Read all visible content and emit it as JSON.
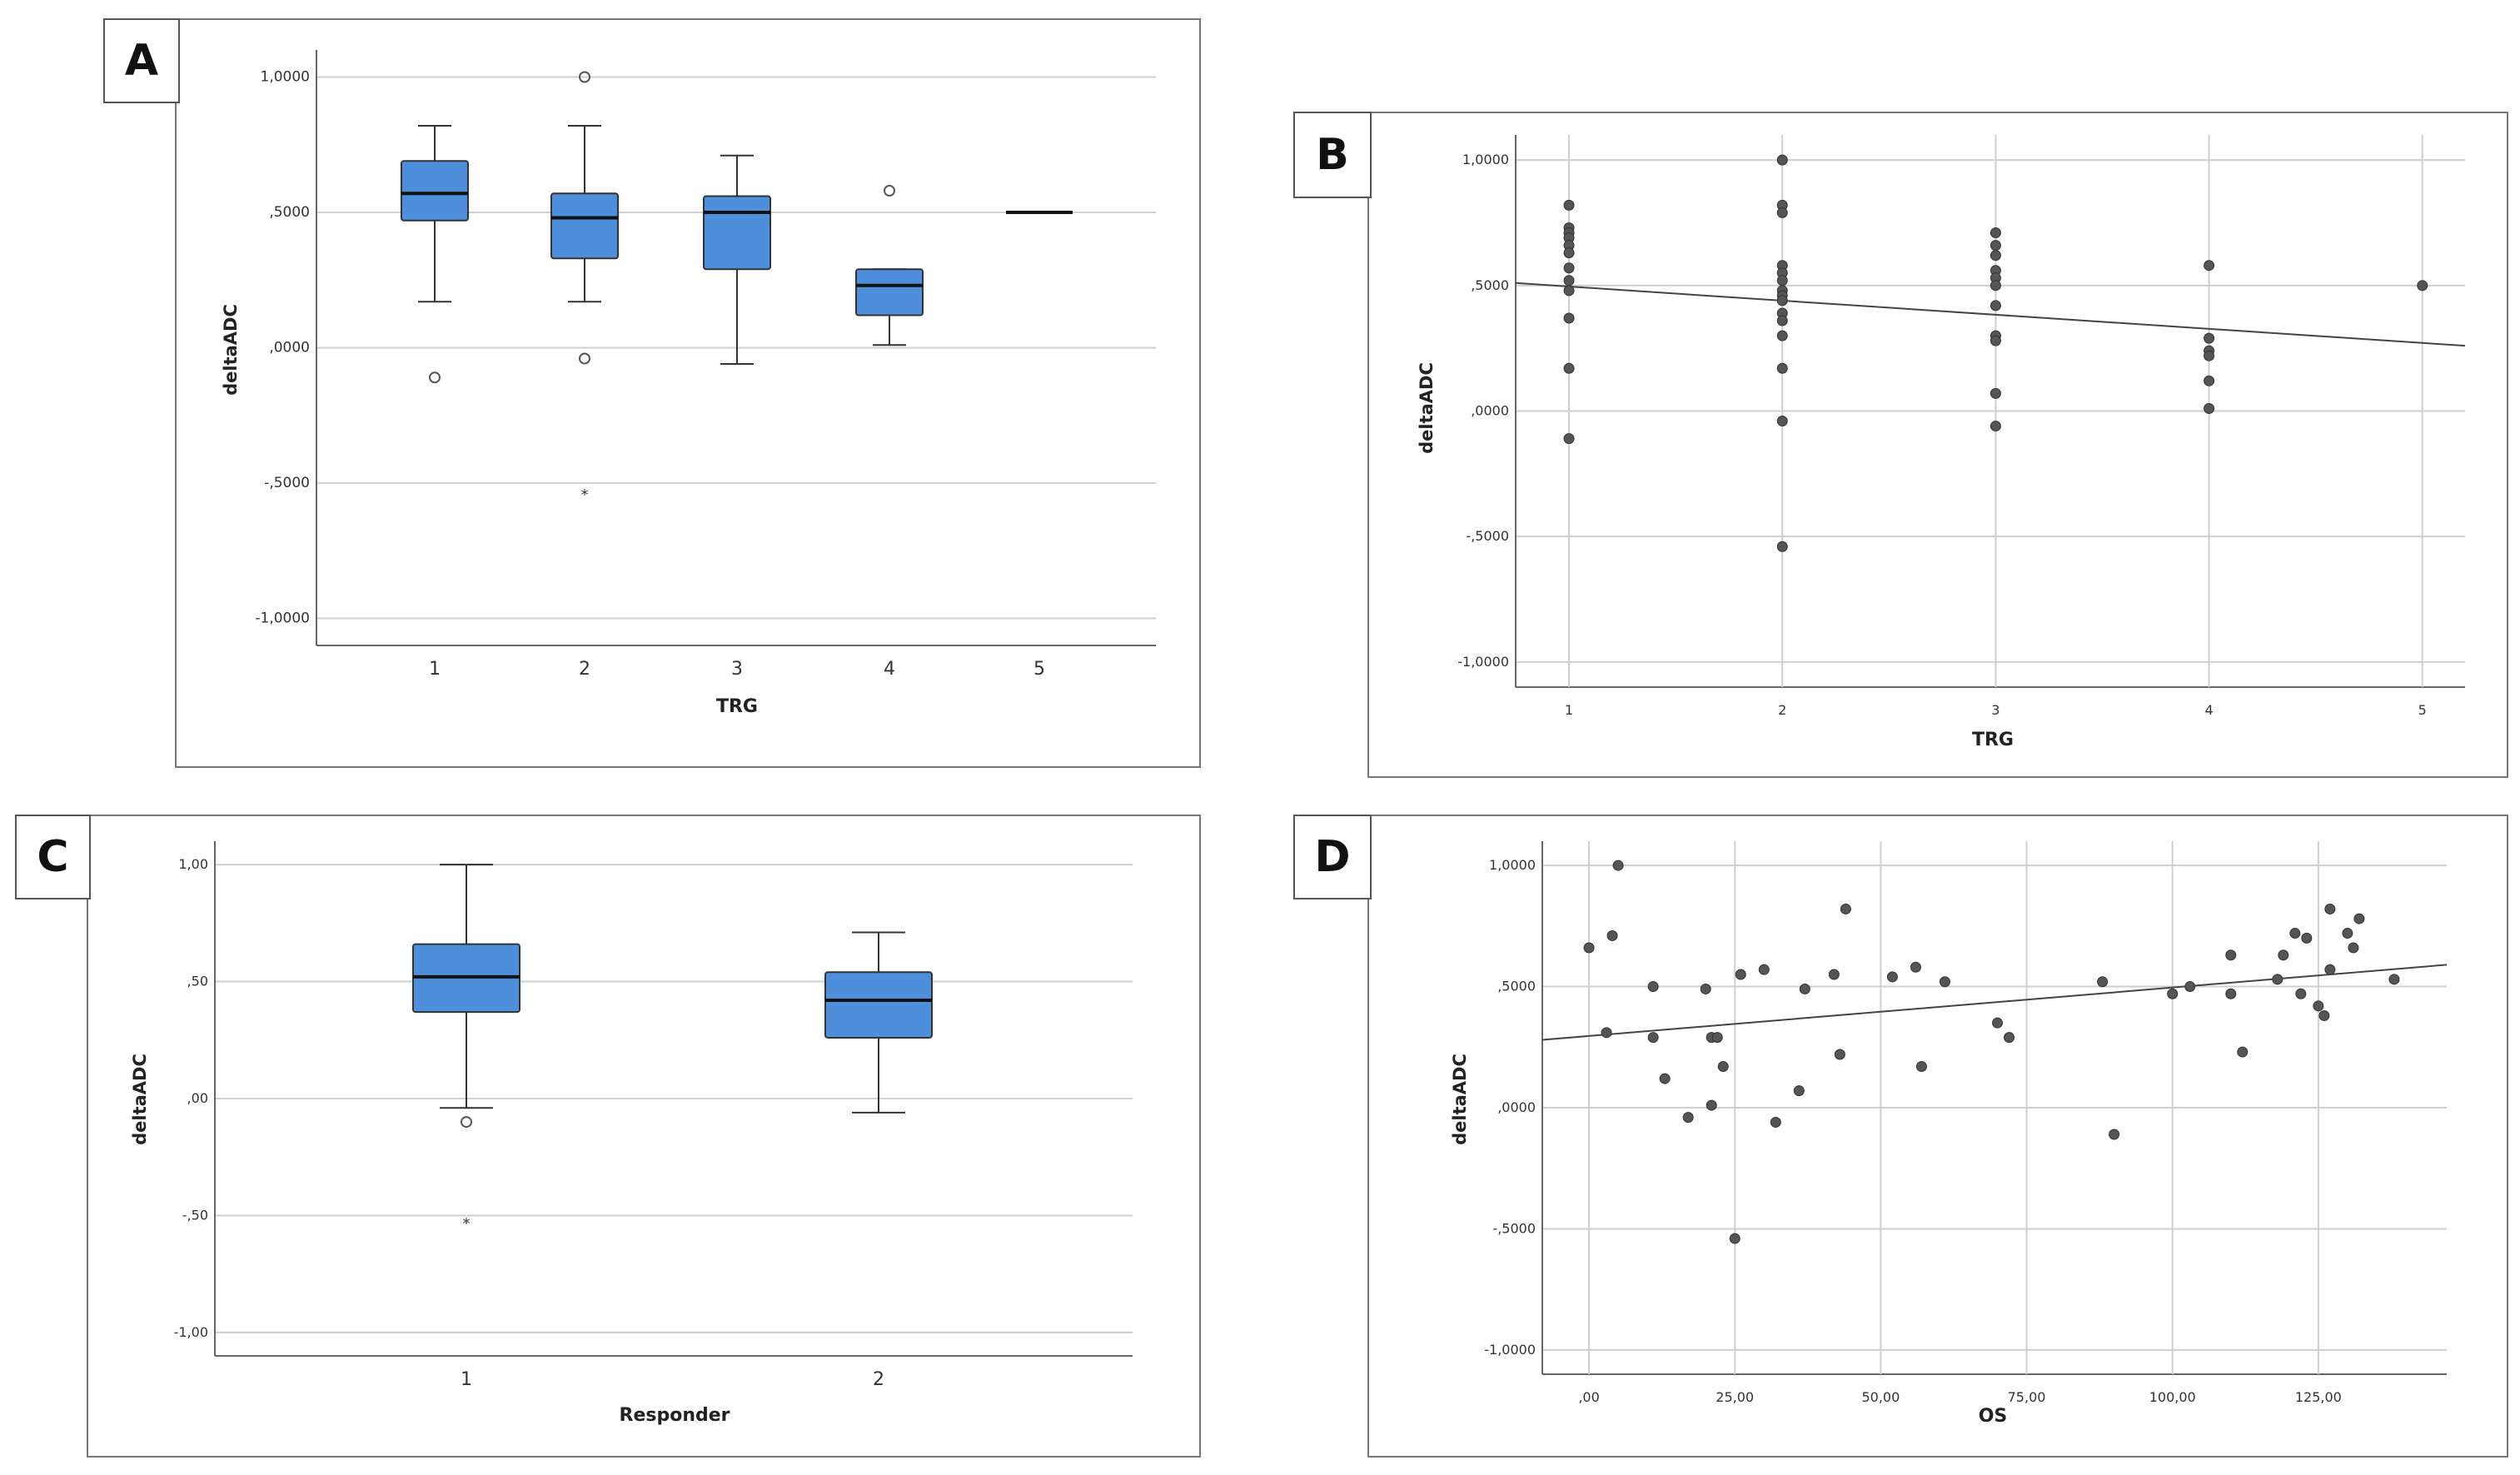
{
  "chart_data": [
    {
      "panel": "A",
      "type": "box",
      "xlabel": "TRG",
      "ylabel": "deltaADC",
      "ylim": [
        -1.1,
        1.1
      ],
      "yticks": [
        1.0,
        0.5,
        0.0,
        -0.5,
        -1.0
      ],
      "ytick_labels": [
        "1,0000",
        ",5000",
        ",0000",
        "-,5000",
        "-1,0000"
      ],
      "categories": [
        "1",
        "2",
        "3",
        "4",
        "5"
      ],
      "boxes": [
        {
          "category": "1",
          "min": 0.17,
          "q1": 0.47,
          "median": 0.57,
          "q3": 0.69,
          "max": 0.82,
          "outliers": [
            {
              "v": -0.11,
              "m": "o"
            }
          ]
        },
        {
          "category": "2",
          "min": 0.17,
          "q1": 0.33,
          "median": 0.48,
          "q3": 0.57,
          "max": 0.82,
          "outliers": [
            {
              "v": 1.0,
              "m": "o"
            },
            {
              "v": -0.04,
              "m": "o"
            },
            {
              "v": -0.54,
              "m": "*"
            }
          ]
        },
        {
          "category": "3",
          "min": -0.06,
          "q1": 0.29,
          "median": 0.5,
          "q3": 0.56,
          "max": 0.71,
          "outliers": []
        },
        {
          "category": "4",
          "min": 0.01,
          "q1": 0.12,
          "median": 0.23,
          "q3": 0.29,
          "max": 0.29,
          "outliers": [
            {
              "v": 0.58,
              "m": "o"
            }
          ]
        },
        {
          "category": "5",
          "min": 0.5,
          "q1": 0.5,
          "median": 0.5,
          "q3": 0.5,
          "max": 0.5,
          "outliers": []
        }
      ],
      "box_color": "#4d8fdb"
    },
    {
      "panel": "B",
      "type": "scatter",
      "xlabel": "TRG",
      "ylabel": "deltaADC",
      "ylim": [
        -1.1,
        1.1
      ],
      "xlim": [
        0.75,
        5.2
      ],
      "xticks": [
        1,
        2,
        3,
        4,
        5
      ],
      "xtick_labels": [
        "1",
        "2",
        "3",
        "4",
        "5"
      ],
      "yticks": [
        1.0,
        0.5,
        0.0,
        -0.5,
        -1.0
      ],
      "ytick_labels": [
        "1,0000",
        ",5000",
        ",0000",
        "-,5000",
        "-1,0000"
      ],
      "points": [
        [
          1,
          0.82
        ],
        [
          1,
          0.73
        ],
        [
          1,
          0.71
        ],
        [
          1,
          0.69
        ],
        [
          1,
          0.66
        ],
        [
          1,
          0.63
        ],
        [
          1,
          0.57
        ],
        [
          1,
          0.52
        ],
        [
          1,
          0.48
        ],
        [
          1,
          0.37
        ],
        [
          1,
          0.17
        ],
        [
          1,
          -0.11
        ],
        [
          2,
          1.0
        ],
        [
          2,
          0.82
        ],
        [
          2,
          0.79
        ],
        [
          2,
          0.58
        ],
        [
          2,
          0.55
        ],
        [
          2,
          0.52
        ],
        [
          2,
          0.48
        ],
        [
          2,
          0.46
        ],
        [
          2,
          0.44
        ],
        [
          2,
          0.39
        ],
        [
          2,
          0.36
        ],
        [
          2,
          0.3
        ],
        [
          2,
          0.17
        ],
        [
          2,
          -0.04
        ],
        [
          2,
          -0.54
        ],
        [
          3,
          0.71
        ],
        [
          3,
          0.66
        ],
        [
          3,
          0.62
        ],
        [
          3,
          0.56
        ],
        [
          3,
          0.53
        ],
        [
          3,
          0.5
        ],
        [
          3,
          0.42
        ],
        [
          3,
          0.3
        ],
        [
          3,
          0.28
        ],
        [
          3,
          0.07
        ],
        [
          3,
          -0.06
        ],
        [
          4,
          0.58
        ],
        [
          4,
          0.29
        ],
        [
          4,
          0.24
        ],
        [
          4,
          0.22
        ],
        [
          4,
          0.12
        ],
        [
          4,
          0.01
        ],
        [
          5,
          0.5
        ]
      ],
      "fit_line": {
        "x": [
          0.75,
          5.2
        ],
        "y": [
          0.51,
          0.26
        ]
      }
    },
    {
      "panel": "C",
      "type": "box",
      "xlabel": "Responder",
      "ylabel": "deltaADC",
      "ylim": [
        -1.1,
        1.1
      ],
      "yticks": [
        1.0,
        0.5,
        0.0,
        -0.5,
        -1.0
      ],
      "ytick_labels": [
        "1,00",
        ",50",
        ",00",
        "-,50",
        "-1,00"
      ],
      "categories": [
        "1",
        "2"
      ],
      "boxes": [
        {
          "category": "1",
          "min": -0.04,
          "q1": 0.37,
          "median": 0.52,
          "q3": 0.66,
          "max": 1.0,
          "outliers": [
            {
              "v": -0.1,
              "m": "o"
            },
            {
              "v": -0.53,
              "m": "*"
            }
          ]
        },
        {
          "category": "2",
          "min": -0.06,
          "q1": 0.26,
          "median": 0.42,
          "q3": 0.54,
          "max": 0.71,
          "outliers": []
        }
      ],
      "box_color": "#4d8fdb"
    },
    {
      "panel": "D",
      "type": "scatter",
      "xlabel": "OS",
      "ylabel": "deltaADC",
      "ylim": [
        -1.1,
        1.1
      ],
      "xlim": [
        -8,
        147
      ],
      "xticks": [
        0,
        25,
        50,
        75,
        100,
        125
      ],
      "xtick_labels": [
        ",00",
        "25,00",
        "50,00",
        "75,00",
        "100,00",
        "125,00"
      ],
      "yticks": [
        1.0,
        0.5,
        0.0,
        -0.5,
        -1.0
      ],
      "ytick_labels": [
        "1,0000",
        ",5000",
        ",0000",
        "-,5000",
        "-1,0000"
      ],
      "points": [
        [
          0,
          0.66
        ],
        [
          3,
          0.31
        ],
        [
          4,
          0.71
        ],
        [
          5,
          1.0
        ],
        [
          11,
          0.5
        ],
        [
          11,
          0.29
        ],
        [
          13,
          0.12
        ],
        [
          17,
          -0.04
        ],
        [
          20,
          0.49
        ],
        [
          21,
          0.29
        ],
        [
          21,
          0.01
        ],
        [
          22,
          0.29
        ],
        [
          23,
          0.17
        ],
        [
          25,
          -0.54
        ],
        [
          26,
          0.55
        ],
        [
          30,
          0.57
        ],
        [
          32,
          -0.06
        ],
        [
          36,
          0.07
        ],
        [
          37,
          0.49
        ],
        [
          42,
          0.55
        ],
        [
          43,
          0.22
        ],
        [
          44,
          0.82
        ],
        [
          52,
          0.54
        ],
        [
          56,
          0.58
        ],
        [
          57,
          0.17
        ],
        [
          61,
          0.52
        ],
        [
          70,
          0.35
        ],
        [
          72,
          0.29
        ],
        [
          88,
          0.52
        ],
        [
          90,
          -0.11
        ],
        [
          100,
          0.47
        ],
        [
          103,
          0.5
        ],
        [
          110,
          0.47
        ],
        [
          110,
          0.63
        ],
        [
          112,
          0.23
        ],
        [
          118,
          0.53
        ],
        [
          119,
          0.63
        ],
        [
          121,
          0.72
        ],
        [
          122,
          0.47
        ],
        [
          123,
          0.7
        ],
        [
          125,
          0.42
        ],
        [
          126,
          0.38
        ],
        [
          127,
          0.57
        ],
        [
          127,
          0.82
        ],
        [
          130,
          0.72
        ],
        [
          131,
          0.66
        ],
        [
          132,
          0.78
        ],
        [
          138,
          0.53
        ]
      ],
      "fit_line": {
        "x": [
          -8,
          147
        ],
        "y": [
          0.28,
          0.59
        ]
      }
    }
  ],
  "panel_labels": [
    "A",
    "B",
    "C",
    "D"
  ],
  "colors": {
    "box_fill": "#4d8fdb",
    "grid": "#cfcfcf",
    "points": "#555555"
  }
}
